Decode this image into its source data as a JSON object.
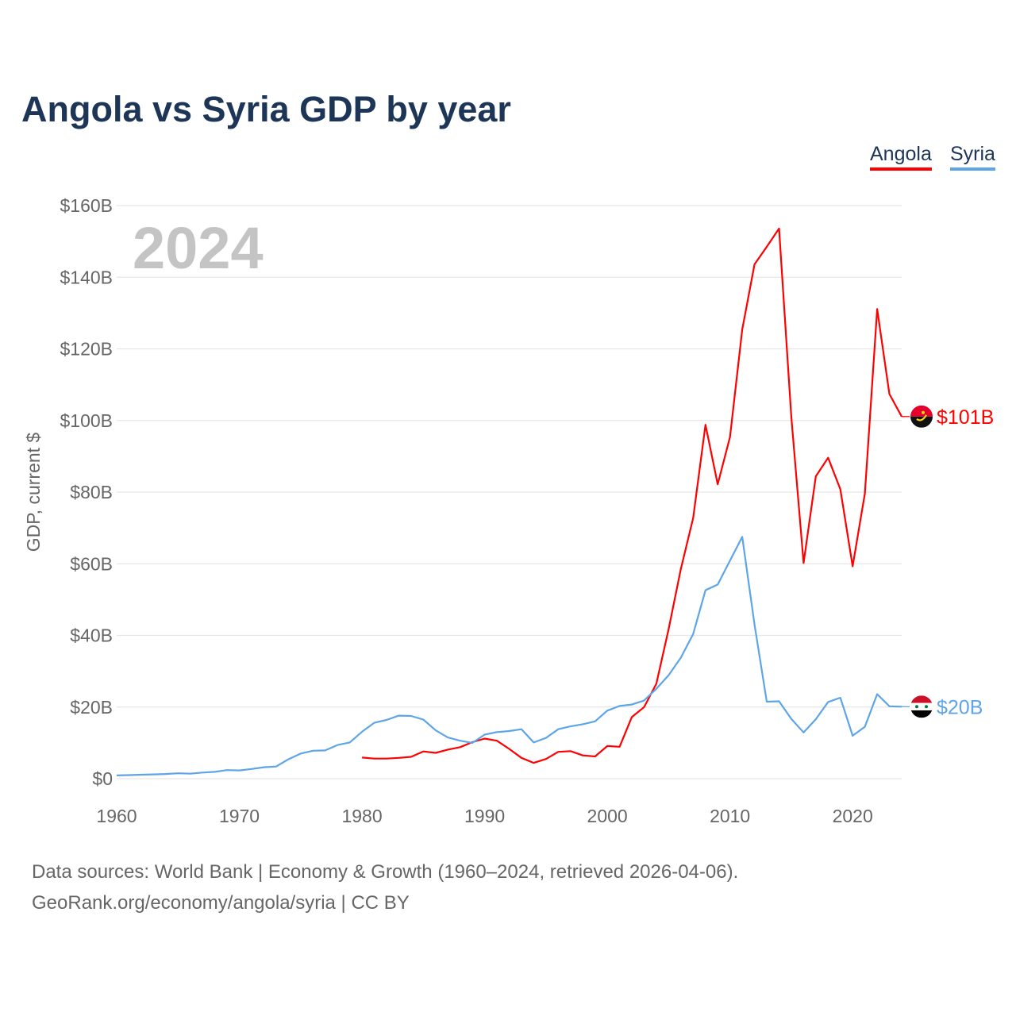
{
  "chart_data": {
    "type": "line",
    "title": "Angola vs Syria GDP by year",
    "ylabel": "GDP, current $",
    "xlabel": "",
    "year_watermark": "2024",
    "xlim": [
      1960,
      2024
    ],
    "ylim": [
      0,
      160
    ],
    "x_ticks": [
      1960,
      1970,
      1980,
      1990,
      2000,
      2010,
      2020
    ],
    "y_ticks": [
      0,
      20,
      40,
      60,
      80,
      100,
      120,
      140,
      160
    ],
    "y_tick_labels": [
      "$0",
      "$20B",
      "$40B",
      "$60B",
      "$80B",
      "$100B",
      "$120B",
      "$140B",
      "$160B"
    ],
    "grid": true,
    "legend_position": "top-right",
    "series": [
      {
        "name": "Angola",
        "color": "#ff0000",
        "end_label": "$101B",
        "start_year": 1980,
        "values": [
          5.9,
          5.6,
          5.6,
          5.8,
          6.1,
          7.6,
          7.2,
          8.1,
          8.8,
          10.2,
          11.2,
          10.6,
          8.3,
          5.8,
          4.4,
          5.5,
          7.5,
          7.7,
          6.5,
          6.2,
          9.1,
          8.9,
          17.2,
          20.0,
          26.5,
          41.8,
          58.6,
          72.8,
          98.8,
          82.2,
          95.4,
          125.4,
          143.6,
          148.5,
          153.6,
          101.1,
          60.2,
          84.4,
          89.6,
          80.8,
          59.3,
          79.6,
          131.1,
          107.4,
          101.1
        ]
      },
      {
        "name": "Syria",
        "color": "#5da5e8",
        "end_label": "$20B",
        "start_year": 1960,
        "values": [
          0.9,
          1.0,
          1.1,
          1.2,
          1.3,
          1.5,
          1.4,
          1.7,
          1.9,
          2.4,
          2.3,
          2.7,
          3.2,
          3.4,
          5.4,
          7.0,
          7.8,
          7.9,
          9.4,
          10.1,
          13.1,
          15.6,
          16.4,
          17.6,
          17.5,
          16.5,
          13.5,
          11.5,
          10.6,
          10.0,
          12.3,
          13.0,
          13.3,
          13.8,
          10.1,
          11.4,
          13.8,
          14.6,
          15.2,
          16.0,
          19.0,
          20.3,
          20.7,
          21.8,
          25.1,
          28.9,
          33.8,
          40.4,
          52.6,
          54.2,
          60.9,
          67.5,
          43.0,
          21.5,
          21.6,
          16.7,
          12.9,
          16.6,
          21.4,
          22.6,
          12.0,
          14.5,
          23.6,
          20.2,
          20.1
        ]
      }
    ]
  },
  "footer": {
    "line1": "Data sources: World Bank | Economy & Growth (1960–2024, retrieved 2026-04-06).",
    "line2": "GeoRank.org/economy/angola/syria | CC BY"
  }
}
